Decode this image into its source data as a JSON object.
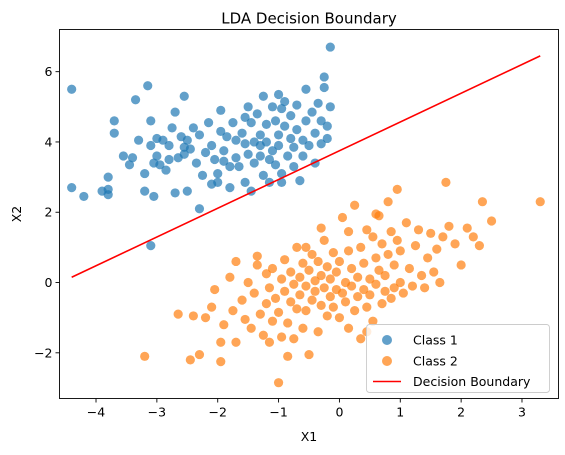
{
  "chart_data": {
    "type": "scatter",
    "title": "LDA Decision Boundary",
    "xlabel": "X1",
    "ylabel": "X2",
    "xlim": [
      -4.6,
      3.6
    ],
    "ylim": [
      -3.3,
      7.2
    ],
    "xticks": [
      -4,
      -3,
      -2,
      -1,
      0,
      1,
      2,
      3
    ],
    "xtick_labels": [
      "−4",
      "−3",
      "−2",
      "−1",
      "0",
      "1",
      "2",
      "3"
    ],
    "yticks": [
      -2,
      0,
      2,
      4,
      6
    ],
    "ytick_labels": [
      "−2",
      "0",
      "2",
      "4",
      "6"
    ],
    "grid": false,
    "legend_position": "lower-right",
    "series": [
      {
        "name": "Class 1",
        "kind": "scatter",
        "color": "#1f77b4",
        "points": [
          [
            -4.4,
            5.5
          ],
          [
            -4.4,
            2.7
          ],
          [
            -4.2,
            2.45
          ],
          [
            -3.9,
            2.6
          ],
          [
            -3.8,
            2.5
          ],
          [
            -3.8,
            2.65
          ],
          [
            -3.8,
            3.0
          ],
          [
            -3.7,
            4.6
          ],
          [
            -3.7,
            4.25
          ],
          [
            -3.55,
            3.6
          ],
          [
            -3.45,
            3.35
          ],
          [
            -3.4,
            3.55
          ],
          [
            -3.35,
            5.2
          ],
          [
            -3.3,
            4.05
          ],
          [
            -3.2,
            2.6
          ],
          [
            -3.2,
            3.1
          ],
          [
            -3.15,
            5.6
          ],
          [
            -3.1,
            4.6
          ],
          [
            -3.1,
            3.9
          ],
          [
            -3.05,
            3.4
          ],
          [
            -3.05,
            2.45
          ],
          [
            -3.0,
            4.1
          ],
          [
            -3.0,
            3.6
          ],
          [
            -2.95,
            3.35
          ],
          [
            -2.9,
            4.05
          ],
          [
            -2.85,
            3.2
          ],
          [
            -2.8,
            3.9
          ],
          [
            -2.8,
            3.5
          ],
          [
            -2.75,
            4.4
          ],
          [
            -2.7,
            4.85
          ],
          [
            -2.7,
            2.55
          ],
          [
            -2.65,
            3.55
          ],
          [
            -2.6,
            4.15
          ],
          [
            -2.55,
            5.3
          ],
          [
            -2.55,
            3.85
          ],
          [
            -2.55,
            3.65
          ],
          [
            -2.5,
            4.05
          ],
          [
            -2.5,
            2.6
          ],
          [
            -2.45,
            3.8
          ],
          [
            -2.4,
            4.4
          ],
          [
            -2.35,
            3.4
          ],
          [
            -2.3,
            4.2
          ],
          [
            -2.3,
            2.1
          ],
          [
            -2.25,
            3.05
          ],
          [
            -2.2,
            3.7
          ],
          [
            -2.15,
            4.55
          ],
          [
            -2.1,
            3.9
          ],
          [
            -2.05,
            3.5
          ],
          [
            -2.0,
            3.1
          ],
          [
            -2.0,
            2.85
          ],
          [
            -1.95,
            4.9
          ],
          [
            -1.95,
            4.3
          ],
          [
            -1.9,
            3.75
          ],
          [
            -1.9,
            3.45
          ],
          [
            -1.85,
            4.15
          ],
          [
            -1.8,
            3.3
          ],
          [
            -1.8,
            2.7
          ],
          [
            -1.75,
            4.55
          ],
          [
            -1.7,
            4.05
          ],
          [
            -1.7,
            3.55
          ],
          [
            -1.65,
            3.3
          ],
          [
            -1.6,
            4.25
          ],
          [
            -1.55,
            4.7
          ],
          [
            -1.55,
            3.95
          ],
          [
            -1.5,
            5.0
          ],
          [
            -1.5,
            3.65
          ],
          [
            -1.45,
            4.55
          ],
          [
            -1.45,
            2.6
          ],
          [
            -1.4,
            4.0
          ],
          [
            -1.4,
            3.4
          ],
          [
            -1.35,
            4.8
          ],
          [
            -1.3,
            4.2
          ],
          [
            -1.3,
            3.9
          ],
          [
            -1.3,
            3.6
          ],
          [
            -1.25,
            5.3
          ],
          [
            -1.25,
            3.05
          ],
          [
            -1.2,
            4.5
          ],
          [
            -1.2,
            4.0
          ],
          [
            -1.15,
            3.5
          ],
          [
            -1.15,
            2.85
          ],
          [
            -1.1,
            5.0
          ],
          [
            -1.1,
            3.75
          ],
          [
            -1.05,
            4.6
          ],
          [
            -1.05,
            3.35
          ],
          [
            -1.0,
            5.35
          ],
          [
            -1.0,
            4.2
          ],
          [
            -1.0,
            3.9
          ],
          [
            -0.95,
            4.95
          ],
          [
            -0.95,
            3.1
          ],
          [
            -0.95,
            2.85
          ],
          [
            -0.9,
            5.15
          ],
          [
            -0.9,
            4.45
          ],
          [
            -0.85,
            3.6
          ],
          [
            -0.8,
            4.75
          ],
          [
            -0.8,
            4.1
          ],
          [
            -0.75,
            3.85
          ],
          [
            -0.75,
            3.3
          ],
          [
            -0.7,
            5.05
          ],
          [
            -0.7,
            4.35
          ],
          [
            -0.65,
            2.9
          ],
          [
            -0.6,
            4.05
          ],
          [
            -0.6,
            3.6
          ],
          [
            -0.55,
            5.5
          ],
          [
            -0.55,
            4.6
          ],
          [
            -0.5,
            3.9
          ],
          [
            -0.45,
            4.85
          ],
          [
            -0.4,
            4.25
          ],
          [
            -0.4,
            3.4
          ],
          [
            -0.35,
            5.1
          ],
          [
            -0.3,
            4.6
          ],
          [
            -0.3,
            3.95
          ],
          [
            -0.25,
            5.85
          ],
          [
            -0.25,
            5.55
          ],
          [
            -0.2,
            4.45
          ],
          [
            -0.2,
            4.1
          ],
          [
            -0.15,
            6.7
          ],
          [
            -0.15,
            5.0
          ],
          [
            -2.1,
            2.8
          ],
          [
            -1.55,
            2.85
          ],
          [
            -3.1,
            1.05
          ]
        ]
      },
      {
        "name": "Class 2",
        "kind": "scatter",
        "color": "#ff7f0e",
        "points": [
          [
            -3.2,
            -2.1
          ],
          [
            -2.65,
            -0.9
          ],
          [
            -2.45,
            -2.2
          ],
          [
            -2.4,
            -0.95
          ],
          [
            -2.3,
            -2.05
          ],
          [
            -2.2,
            -1.0
          ],
          [
            -2.1,
            -0.7
          ],
          [
            -2.05,
            -0.2
          ],
          [
            -1.95,
            -2.25
          ],
          [
            -1.9,
            -1.2
          ],
          [
            -1.8,
            0.15
          ],
          [
            -1.75,
            -0.8
          ],
          [
            -1.7,
            -1.7
          ],
          [
            -1.7,
            0.6
          ],
          [
            -1.6,
            -0.5
          ],
          [
            -1.55,
            -1.05
          ],
          [
            -1.5,
            0.0
          ],
          [
            -1.45,
            -1.3
          ],
          [
            -1.4,
            -0.3
          ],
          [
            -1.35,
            0.5
          ],
          [
            -1.35,
            0.75
          ],
          [
            -1.3,
            -0.9
          ],
          [
            -1.25,
            -1.5
          ],
          [
            -1.2,
            0.25
          ],
          [
            -1.2,
            -0.6
          ],
          [
            -1.15,
            -0.15
          ],
          [
            -1.1,
            -1.1
          ],
          [
            -1.1,
            0.4
          ],
          [
            -1.05,
            -0.45
          ],
          [
            -1.0,
            -2.85
          ],
          [
            -1.0,
            -0.85
          ],
          [
            -0.95,
            0.1
          ],
          [
            -0.95,
            -1.55
          ],
          [
            -0.9,
            -0.25
          ],
          [
            -0.9,
            0.65
          ],
          [
            -0.85,
            -2.1
          ],
          [
            -0.85,
            -1.15
          ],
          [
            -0.8,
            -0.55
          ],
          [
            -0.8,
            0.3
          ],
          [
            -0.75,
            -0.05
          ],
          [
            -0.75,
            -1.6
          ],
          [
            -0.7,
            1.0
          ],
          [
            -0.7,
            -0.75
          ],
          [
            -0.65,
            0.15
          ],
          [
            -0.65,
            -0.35
          ],
          [
            -0.6,
            -1.3
          ],
          [
            -0.6,
            0.55
          ],
          [
            -0.55,
            -0.1
          ],
          [
            -0.55,
            -0.8
          ],
          [
            -0.5,
            0.35
          ],
          [
            -0.5,
            -2.05
          ],
          [
            -0.45,
            -0.5
          ],
          [
            -0.45,
            0.8
          ],
          [
            -0.4,
            -0.25
          ],
          [
            -0.4,
            0.05
          ],
          [
            -0.35,
            -1.4
          ],
          [
            -0.35,
            0.6
          ],
          [
            -0.3,
            -0.65
          ],
          [
            -0.3,
            0.2
          ],
          [
            -0.25,
            1.2
          ],
          [
            -0.25,
            -0.15
          ],
          [
            -0.2,
            -0.95
          ],
          [
            -0.2,
            0.45
          ],
          [
            -0.15,
            -0.4
          ],
          [
            -0.15,
            0.1
          ],
          [
            -0.1,
            0.85
          ],
          [
            -0.1,
            -0.7
          ],
          [
            -0.05,
            -0.2
          ],
          [
            -0.05,
            0.3
          ],
          [
            0.0,
            -1.0
          ],
          [
            0.0,
            0.6
          ],
          [
            0.05,
            -0.3
          ],
          [
            0.05,
            1.85
          ],
          [
            0.1,
            0.0
          ],
          [
            0.1,
            -0.55
          ],
          [
            0.15,
            0.9
          ],
          [
            0.15,
            -1.3
          ],
          [
            0.2,
            -0.1
          ],
          [
            0.2,
            0.4
          ],
          [
            0.25,
            -0.8
          ],
          [
            0.25,
            2.2
          ],
          [
            0.3,
            0.15
          ],
          [
            0.3,
            -0.4
          ],
          [
            0.35,
            1.0
          ],
          [
            0.35,
            -1.6
          ],
          [
            0.4,
            -0.2
          ],
          [
            0.4,
            0.55
          ],
          [
            0.45,
            1.5
          ],
          [
            0.45,
            -0.7
          ],
          [
            0.5,
            0.1
          ],
          [
            0.5,
            -0.35
          ],
          [
            0.55,
            1.3
          ],
          [
            0.55,
            -1.1
          ],
          [
            0.6,
            0.7
          ],
          [
            0.6,
            -0.05
          ],
          [
            0.65,
            1.9
          ],
          [
            0.65,
            0.35
          ],
          [
            0.7,
            -0.6
          ],
          [
            0.7,
            1.1
          ],
          [
            0.75,
            0.2
          ],
          [
            0.75,
            -0.25
          ],
          [
            0.8,
            2.3
          ],
          [
            0.8,
            0.8
          ],
          [
            0.85,
            -0.45
          ],
          [
            0.85,
            1.45
          ],
          [
            0.9,
            0.5
          ],
          [
            0.9,
            -0.15
          ],
          [
            0.95,
            2.65
          ],
          [
            0.95,
            1.2
          ],
          [
            1.0,
            0.0
          ],
          [
            1.0,
            0.9
          ],
          [
            1.05,
            -0.3
          ],
          [
            1.1,
            1.7
          ],
          [
            1.15,
            0.4
          ],
          [
            1.2,
            -0.1
          ],
          [
            1.25,
            1.05
          ],
          [
            1.3,
            1.5
          ],
          [
            1.35,
            0.2
          ],
          [
            1.4,
            -0.15
          ],
          [
            1.45,
            0.7
          ],
          [
            1.5,
            1.4
          ],
          [
            1.55,
            0.3
          ],
          [
            1.6,
            0.95
          ],
          [
            1.65,
            0.0
          ],
          [
            1.7,
            1.3
          ],
          [
            1.75,
            2.85
          ],
          [
            1.8,
            1.6
          ],
          [
            1.9,
            1.1
          ],
          [
            2.0,
            0.5
          ],
          [
            2.1,
            1.55
          ],
          [
            2.2,
            1.3
          ],
          [
            2.3,
            1.05
          ],
          [
            2.35,
            2.3
          ],
          [
            2.5,
            1.75
          ],
          [
            3.3,
            2.3
          ],
          [
            -0.3,
            1.55
          ],
          [
            0.6,
            1.95
          ],
          [
            -0.55,
            1.0
          ],
          [
            0.15,
            1.45
          ],
          [
            -1.95,
            -1.7
          ],
          [
            -1.15,
            -1.7
          ],
          [
            0.45,
            -1.4
          ]
        ]
      },
      {
        "name": "Decision Boundary",
        "kind": "line",
        "color": "#ff0000",
        "points": [
          [
            -4.4,
            0.15
          ],
          [
            3.3,
            6.45
          ]
        ]
      }
    ]
  }
}
